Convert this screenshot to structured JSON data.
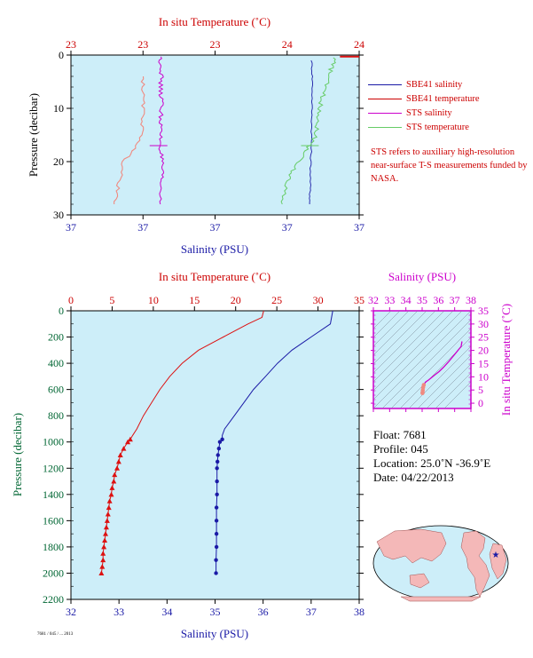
{
  "top_panel": {
    "top_axis_title": "In situ Temperature (˚C)",
    "bottom_axis_title": "Salinity (PSU)",
    "left_axis_title": "Pressure (decibar)"
  },
  "bottom_panel": {
    "top_axis_title": "In situ Temperature (˚C)",
    "bottom_axis_title": "Salinity (PSU)",
    "left_axis_title": "Pressure (decibar)"
  },
  "ts_panel": {
    "top_axis_title": "Salinity (PSU)",
    "right_axis_title": "In situ Temperature (˚C)"
  },
  "legend": [
    {
      "label": "SBE41 salinity",
      "color": "#1a1aa6"
    },
    {
      "label": "SBE41 temperature",
      "color": "#cc0000"
    },
    {
      "label": "STS salinity",
      "color": "#cc00cc"
    },
    {
      "label": "STS temperature",
      "color": "#66cc66"
    }
  ],
  "note": "STS refers to auxiliary high-resolution near-surface T-S measurements funded by NASA.",
  "float_info": {
    "float": "Float:  7681",
    "profile": "Profile:  045",
    "location": "Location:  25.0˚N  -36.9˚E",
    "date": "Date:  04/22/2013"
  },
  "footer_tiny": "7681 / 045 / ... 2013",
  "colors": {
    "plot_bg": "#cdeef9",
    "temperature": "#dd1111",
    "salinity": "#1a1aa6",
    "sts_salinity": "#cc00cc",
    "sts_temperature": "#66cc66",
    "ts_accent": "#cc00cc",
    "land": "#f4b8b8",
    "ocean": "#cdeef9",
    "float_marker": "#1a1aa6"
  },
  "chart_data": [
    {
      "id": "near-surface",
      "type": "line",
      "title": "",
      "x_top": {
        "label": "In situ Temperature (˚C)",
        "ticks": [
          "23",
          "23",
          "23",
          "24",
          "24"
        ],
        "range": [
          22.8,
          24.0
        ]
      },
      "x_bottom": {
        "label": "Salinity (PSU)",
        "ticks": [
          "37",
          "37",
          "37",
          "37",
          "37"
        ],
        "range": [
          36.95,
          37.05
        ]
      },
      "y": {
        "label": "Pressure (decibar)",
        "ticks": [
          "0",
          "10",
          "20",
          "30"
        ],
        "range": [
          0,
          30
        ],
        "inverted": true
      },
      "series": [
        {
          "name": "SBE41 salinity",
          "axis": "bottom",
          "points": [
            [
              37.0335,
              1
            ],
            [
              37.0338,
              5
            ],
            [
              37.0336,
              10
            ],
            [
              37.0335,
              15
            ],
            [
              37.0332,
              20
            ],
            [
              37.033,
              25
            ],
            [
              37.0328,
              28
            ]
          ]
        },
        {
          "name": "SBE41 temperature",
          "axis": "top",
          "points": [
            [
              24.0,
              0.3
            ]
          ]
        },
        {
          "name": "STS salinity",
          "axis": "bottom",
          "points": [
            [
              36.981,
              0.3
            ],
            [
              36.9815,
              3
            ],
            [
              36.981,
              6
            ],
            [
              36.9815,
              9
            ],
            [
              36.9812,
              12
            ],
            [
              36.981,
              15
            ],
            [
              36.9812,
              18
            ],
            [
              36.9815,
              21
            ],
            [
              36.9812,
              24
            ],
            [
              36.981,
              28
            ]
          ]
        },
        {
          "name": "STS temperature",
          "axis": "top",
          "points": [
            [
              23.9,
              0.5
            ],
            [
              23.88,
              3
            ],
            [
              23.86,
              6
            ],
            [
              23.84,
              9
            ],
            [
              23.83,
              12
            ],
            [
              23.82,
              15
            ],
            [
              23.78,
              18
            ],
            [
              23.73,
              21
            ],
            [
              23.7,
              24
            ],
            [
              23.68,
              28
            ]
          ]
        },
        {
          "name": "STS temperature (salmon)",
          "axis": "top",
          "points": [
            [
              23.1,
              4
            ],
            [
              23.1,
              8
            ],
            [
              23.1,
              12
            ],
            [
              23.09,
              16
            ],
            [
              23.02,
              20
            ],
            [
              23.0,
              24
            ],
            [
              22.98,
              28
            ]
          ]
        }
      ]
    },
    {
      "id": "full-profile",
      "type": "line",
      "title": "",
      "x_top": {
        "label": "In situ Temperature (˚C)",
        "ticks": [
          "0",
          "5",
          "10",
          "15",
          "20",
          "25",
          "30",
          "35"
        ],
        "range": [
          0,
          35
        ]
      },
      "x_bottom": {
        "label": "Salinity (PSU)",
        "ticks": [
          "32",
          "33",
          "34",
          "35",
          "36",
          "37",
          "38"
        ],
        "range": [
          32,
          38
        ]
      },
      "y": {
        "label": "Pressure (decibar)",
        "ticks": [
          "0",
          "200",
          "400",
          "600",
          "800",
          "1000",
          "1200",
          "1400",
          "1600",
          "1800",
          "2000",
          "2200"
        ],
        "range": [
          0,
          2200
        ],
        "inverted": true
      },
      "series": [
        {
          "name": "SBE41 temperature",
          "axis": "top",
          "points": [
            [
              23.4,
              0
            ],
            [
              23.2,
              50
            ],
            [
              21.5,
              100
            ],
            [
              18.5,
              200
            ],
            [
              15.5,
              300
            ],
            [
              13.5,
              400
            ],
            [
              12.0,
              500
            ],
            [
              10.8,
              600
            ],
            [
              9.8,
              700
            ],
            [
              8.8,
              800
            ],
            [
              8.0,
              900
            ],
            [
              7.5,
              950
            ],
            [
              7.2,
              980
            ],
            [
              6.9,
              1000
            ],
            [
              6.4,
              1050
            ],
            [
              6.0,
              1100
            ],
            [
              5.8,
              1150
            ],
            [
              5.6,
              1200
            ],
            [
              5.3,
              1250
            ],
            [
              5.2,
              1300
            ],
            [
              5.0,
              1350
            ],
            [
              4.9,
              1400
            ],
            [
              4.7,
              1450
            ],
            [
              4.6,
              1500
            ],
            [
              4.5,
              1550
            ],
            [
              4.4,
              1600
            ],
            [
              4.3,
              1650
            ],
            [
              4.2,
              1700
            ],
            [
              4.1,
              1750
            ],
            [
              4.0,
              1800
            ],
            [
              3.9,
              1850
            ],
            [
              3.9,
              1900
            ],
            [
              3.8,
              1950
            ],
            [
              3.7,
              2000
            ]
          ]
        },
        {
          "name": "SBE41 salinity",
          "axis": "bottom",
          "points": [
            [
              37.45,
              0
            ],
            [
              37.4,
              100
            ],
            [
              37.0,
              200
            ],
            [
              36.6,
              300
            ],
            [
              36.3,
              400
            ],
            [
              36.05,
              500
            ],
            [
              35.8,
              600
            ],
            [
              35.6,
              700
            ],
            [
              35.4,
              800
            ],
            [
              35.2,
              900
            ],
            [
              35.15,
              950
            ],
            [
              35.15,
              980
            ],
            [
              35.1,
              1000
            ],
            [
              35.08,
              1050
            ],
            [
              35.06,
              1100
            ],
            [
              35.05,
              1150
            ],
            [
              35.04,
              1200
            ],
            [
              35.04,
              1300
            ],
            [
              35.04,
              1400
            ],
            [
              35.03,
              1500
            ],
            [
              35.03,
              1600
            ],
            [
              35.03,
              1700
            ],
            [
              35.03,
              1800
            ],
            [
              35.02,
              1900
            ],
            [
              35.02,
              2000
            ]
          ]
        }
      ]
    },
    {
      "id": "ts-diagram",
      "type": "scatter",
      "title": "",
      "x": {
        "label": "Salinity (PSU)",
        "ticks": [
          "32",
          "33",
          "34",
          "35",
          "36",
          "37",
          "38"
        ],
        "range": [
          32,
          38
        ]
      },
      "y": {
        "label": "In situ Temperature (˚C)",
        "ticks": [
          "0",
          "5",
          "10",
          "15",
          "20",
          "25",
          "30",
          "35"
        ],
        "range": [
          -2,
          35
        ]
      },
      "series": [
        {
          "name": "T-S",
          "points": [
            [
              35.02,
              3.8
            ],
            [
              35.03,
              4.2
            ],
            [
              35.04,
              5.0
            ],
            [
              35.06,
              6.0
            ],
            [
              35.1,
              6.9
            ],
            [
              35.2,
              8.0
            ],
            [
              35.4,
              8.8
            ],
            [
              35.6,
              9.8
            ],
            [
              35.8,
              10.8
            ],
            [
              36.05,
              12.0
            ],
            [
              36.3,
              13.5
            ],
            [
              36.6,
              15.5
            ],
            [
              37.0,
              18.5
            ],
            [
              37.4,
              21.5
            ],
            [
              37.45,
              23.4
            ]
          ]
        }
      ]
    }
  ]
}
